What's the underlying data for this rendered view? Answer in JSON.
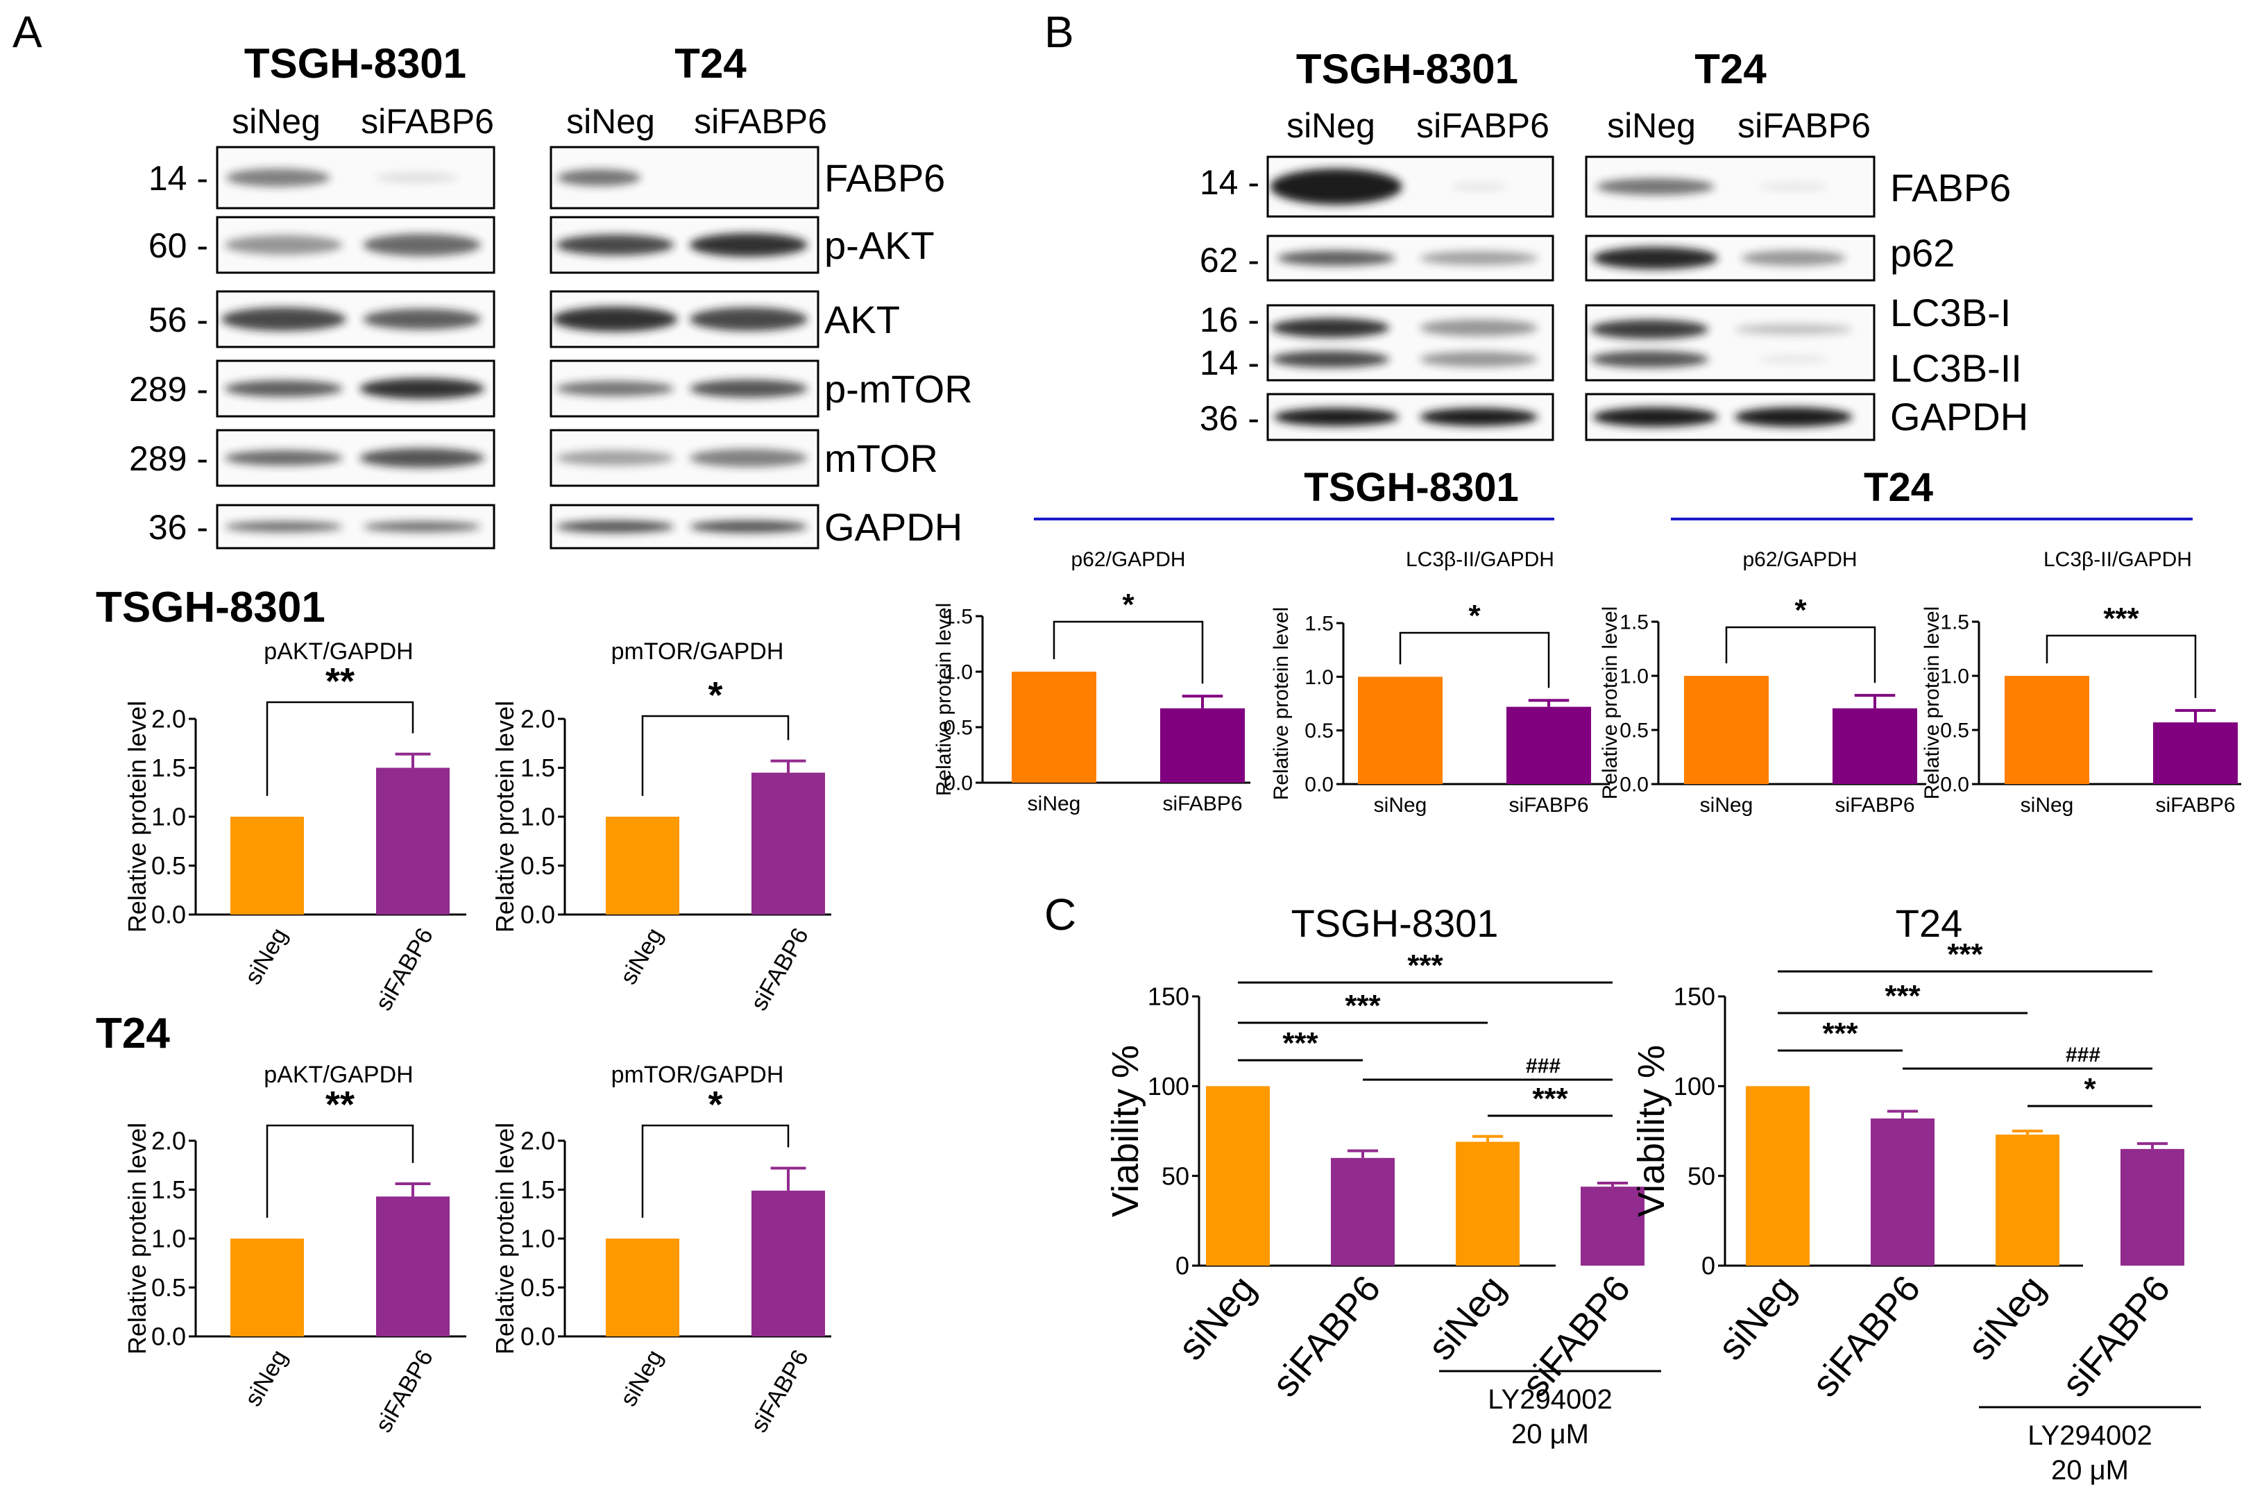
{
  "colors": {
    "orange": "#FF9900",
    "purple": "#922B8E",
    "purple_dark": "#7D0F7B",
    "blue": "#1A1ACC",
    "orange_b": "#FF8000",
    "purple_b": "#800080"
  },
  "panel_letters": {
    "a": "A",
    "b": "B",
    "c": "C"
  },
  "panel_a": {
    "blots": [
      {
        "title": "TSGH-8301",
        "lanes": [
          "siNeg",
          "siFABP6"
        ]
      },
      {
        "title": "T24",
        "lanes": [
          "siNeg",
          "siFABP6"
        ]
      }
    ],
    "mw_markers": [
      "14 -",
      "60 -",
      "56 -",
      "289 -",
      "289 -",
      "36 -"
    ],
    "proteins": [
      "FABP6",
      "p-AKT",
      "AKT",
      "p-mTOR",
      "mTOR",
      "GAPDH"
    ]
  },
  "panel_b": {
    "blots": [
      {
        "title": "TSGH-8301",
        "lanes": [
          "siNeg",
          "siFABP6"
        ]
      },
      {
        "title": "T24",
        "lanes": [
          "siNeg",
          "siFABP6"
        ]
      }
    ],
    "mw_markers": [
      "14 -",
      "62 -",
      "16 -",
      "14 -",
      "36 -"
    ],
    "proteins": [
      "FABP6",
      "p62",
      "LC3B-I",
      "LC3B-II",
      "GAPDH"
    ],
    "group_titles": [
      "TSGH-8301",
      "T24"
    ]
  },
  "chart_data": [
    {
      "id": "a1",
      "panel": "A",
      "cell_line": "TSGH-8301",
      "type": "bar",
      "title": "pAKT/GAPDH",
      "ylabel": "Relative protein level",
      "categories": [
        "siNeg",
        "siFABP6"
      ],
      "values": [
        1.0,
        1.5
      ],
      "errors": [
        0,
        0.14
      ],
      "ylim": [
        0,
        2.0
      ],
      "yticks": [
        "0.0",
        "0.5",
        "1.0",
        "1.5",
        "2.0"
      ],
      "significance": "**"
    },
    {
      "id": "a2",
      "panel": "A",
      "cell_line": "TSGH-8301",
      "type": "bar",
      "title": "pmTOR/GAPDH",
      "ylabel": "Relative protein level",
      "categories": [
        "siNeg",
        "siFABP6"
      ],
      "values": [
        1.0,
        1.45
      ],
      "errors": [
        0,
        0.12
      ],
      "ylim": [
        0,
        2.0
      ],
      "yticks": [
        "0.0",
        "0.5",
        "1.0",
        "1.5",
        "2.0"
      ],
      "significance": "*"
    },
    {
      "id": "a3",
      "panel": "A",
      "cell_line": "T24",
      "type": "bar",
      "title": "pAKT/GAPDH",
      "ylabel": "Relative protein level",
      "categories": [
        "siNeg",
        "siFABP6"
      ],
      "values": [
        1.0,
        1.43
      ],
      "errors": [
        0,
        0.13
      ],
      "ylim": [
        0,
        2.0
      ],
      "yticks": [
        "0.0",
        "0.5",
        "1.0",
        "1.5",
        "2.0"
      ],
      "significance": "**"
    },
    {
      "id": "a4",
      "panel": "A",
      "cell_line": "T24",
      "type": "bar",
      "title": "pmTOR/GAPDH",
      "ylabel": "Relative protein level",
      "categories": [
        "siNeg",
        "siFABP6"
      ],
      "values": [
        1.0,
        1.49
      ],
      "errors": [
        0,
        0.23
      ],
      "ylim": [
        0,
        2.0
      ],
      "yticks": [
        "0.0",
        "0.5",
        "1.0",
        "1.5",
        "2.0"
      ],
      "significance": "*"
    },
    {
      "id": "b1",
      "panel": "B",
      "cell_line": "TSGH-8301",
      "type": "bar",
      "title": "p62/GAPDH",
      "ylabel": "Relative protein level",
      "categories": [
        "siNeg",
        "siFABP6"
      ],
      "values": [
        1.0,
        0.67
      ],
      "errors": [
        0,
        0.11
      ],
      "ylim": [
        0,
        1.5
      ],
      "yticks": [
        "0.0",
        "0.5",
        "1.0",
        "1.5"
      ],
      "significance": "*"
    },
    {
      "id": "b2",
      "panel": "B",
      "cell_line": "TSGH-8301",
      "type": "bar",
      "title": "LC3β-II/GAPDH",
      "ylabel": "Relative protein level",
      "categories": [
        "siNeg",
        "siFABP6"
      ],
      "values": [
        1.0,
        0.72
      ],
      "errors": [
        0,
        0.06
      ],
      "ylim": [
        0,
        1.5
      ],
      "yticks": [
        "0.0",
        "0.5",
        "1.0",
        "1.5"
      ],
      "significance": "*"
    },
    {
      "id": "b3",
      "panel": "B",
      "cell_line": "T24",
      "type": "bar",
      "title": "p62/GAPDH",
      "ylabel": "Relative protein level",
      "categories": [
        "siNeg",
        "siFABP6"
      ],
      "values": [
        1.0,
        0.7
      ],
      "errors": [
        0,
        0.12
      ],
      "ylim": [
        0,
        1.5
      ],
      "yticks": [
        "0.0",
        "0.5",
        "1.0",
        "1.5"
      ],
      "significance": "*"
    },
    {
      "id": "b4",
      "panel": "B",
      "cell_line": "T24",
      "type": "bar",
      "title": "LC3β-II/GAPDH",
      "ylabel": "Relative protein level",
      "categories": [
        "siNeg",
        "siFABP6"
      ],
      "values": [
        1.0,
        0.57
      ],
      "errors": [
        0,
        0.11
      ],
      "ylim": [
        0,
        1.5
      ],
      "yticks": [
        "0.0",
        "0.5",
        "1.0",
        "1.5"
      ],
      "significance": "***"
    },
    {
      "id": "c1",
      "panel": "C",
      "type": "bar",
      "title": "TSGH-8301",
      "ylabel": "Viability %",
      "categories": [
        "siNeg",
        "siFABP6",
        "siNeg",
        "siFABP6"
      ],
      "values": [
        100,
        60,
        69,
        44
      ],
      "errors": [
        0,
        4,
        3,
        2
      ],
      "ylim": [
        0,
        150
      ],
      "yticks": [
        "0",
        "50",
        "100",
        "150"
      ],
      "treatment": [
        "LY294002",
        "20 μM"
      ],
      "comparisons": [
        {
          "from": 0,
          "to": 3,
          "label": "***"
        },
        {
          "from": 0,
          "to": 2,
          "label": "***"
        },
        {
          "from": 0,
          "to": 1,
          "label": "***"
        },
        {
          "from": 1,
          "to": 3,
          "label": "###"
        },
        {
          "from": 2,
          "to": 3,
          "label": "***"
        }
      ]
    },
    {
      "id": "c2",
      "panel": "C",
      "type": "bar",
      "title": "T24",
      "ylabel": "Viability %",
      "categories": [
        "siNeg",
        "siFABP6",
        "siNeg",
        "siFABP6"
      ],
      "values": [
        100,
        82,
        73,
        65
      ],
      "errors": [
        0,
        4,
        2,
        3
      ],
      "ylim": [
        0,
        150
      ],
      "yticks": [
        "0",
        "50",
        "100",
        "150"
      ],
      "treatment": [
        "LY294002",
        "20 μM"
      ],
      "comparisons": [
        {
          "from": 0,
          "to": 3,
          "label": "***"
        },
        {
          "from": 0,
          "to": 2,
          "label": "***"
        },
        {
          "from": 0,
          "to": 1,
          "label": "***"
        },
        {
          "from": 1,
          "to": 3,
          "label": "###"
        },
        {
          "from": 2,
          "to": 3,
          "label": "*"
        }
      ]
    }
  ]
}
